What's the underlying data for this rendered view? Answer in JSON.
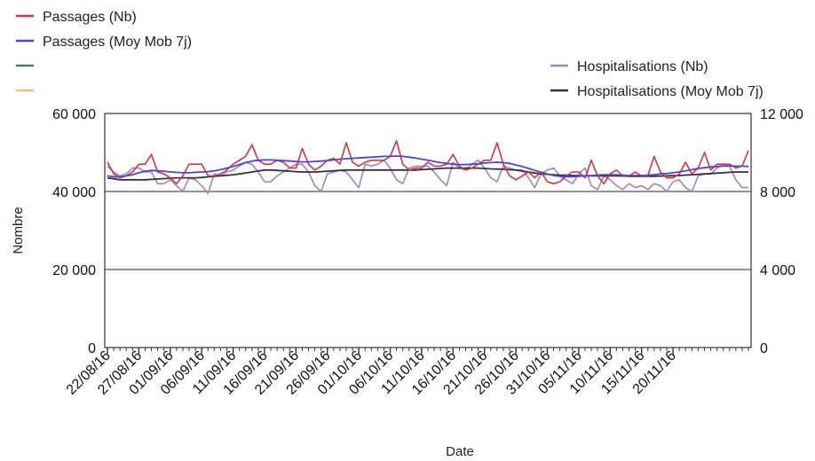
{
  "chart_data": {
    "type": "line",
    "title": "",
    "xlabel": "Date",
    "ylabel": "Nombre",
    "y2label": "",
    "ylim": [
      0,
      60000
    ],
    "y2lim": [
      0,
      12000
    ],
    "grid": "horizontal",
    "legend_left_position": "top-left",
    "legend_right_position": "top-right",
    "start_date": "22/08/16",
    "x_tick_labels": [
      "22/08/16",
      "27/08/16",
      "01/09/16",
      "06/09/16",
      "11/09/16",
      "16/09/16",
      "21/09/16",
      "26/09/16",
      "01/10/16",
      "06/10/16",
      "11/10/16",
      "16/10/16",
      "21/10/16",
      "26/10/16",
      "31/10/16",
      "05/11/16",
      "10/11/16",
      "15/11/16",
      "20/11/16"
    ],
    "y_ticks": [
      "0",
      "20 000",
      "40 000",
      "60 000"
    ],
    "y2_ticks": [
      "0",
      "4 000",
      "8 000",
      "12 000"
    ],
    "series": [
      {
        "name": "Passages (Nb)",
        "axis": "left",
        "color": "#d9343f",
        "values": [
          47500,
          44500,
          43500,
          44000,
          45000,
          47000,
          47000,
          49500,
          45000,
          44500,
          43500,
          42000,
          44000,
          47000,
          47000,
          47000,
          44000,
          44000,
          44500,
          45500,
          47000,
          48000,
          49000,
          52000,
          48000,
          47000,
          47000,
          48000,
          47500,
          46000,
          46000,
          51000,
          47000,
          45500,
          46500,
          48000,
          48500,
          47000,
          52500,
          47500,
          46500,
          47500,
          48000,
          48000,
          48000,
          49000,
          53000,
          47000,
          45500,
          46000,
          46000,
          47500,
          46500,
          46500,
          47000,
          49500,
          46500,
          45500,
          46000,
          47000,
          48000,
          48000,
          52500,
          47000,
          44000,
          43000,
          44000,
          45000,
          43500,
          45000,
          42500,
          42000,
          42500,
          44000,
          45000,
          45000,
          43500,
          48000,
          44000,
          42000,
          44500,
          45500,
          44000,
          44000,
          45000,
          44000,
          44000,
          49000,
          45000,
          43500,
          43500,
          44500,
          47500,
          44500,
          46000,
          50000,
          45500,
          47000,
          47000,
          47000,
          46000,
          46500,
          50500
        ]
      },
      {
        "name": "Passages (Moy Mob 7j)",
        "axis": "left",
        "color": "#4b46d6",
        "values": [
          44000,
          43800,
          43700,
          44000,
          44300,
          44800,
          45200,
          45400,
          45300,
          45200,
          45000,
          44900,
          44800,
          44800,
          44900,
          45000,
          45100,
          45300,
          45600,
          46000,
          46400,
          46900,
          47400,
          47800,
          48000,
          48100,
          48100,
          48000,
          47900,
          47800,
          47700,
          47600,
          47600,
          47700,
          47800,
          47900,
          48100,
          48300,
          48400,
          48500,
          48600,
          48700,
          48800,
          48900,
          49000,
          49000,
          49100,
          49000,
          48800,
          48600,
          48300,
          48000,
          47700,
          47400,
          47200,
          47000,
          46900,
          46900,
          47000,
          47100,
          47300,
          47400,
          47500,
          47400,
          47200,
          46800,
          46400,
          45900,
          45400,
          44900,
          44500,
          44100,
          43900,
          43800,
          43800,
          43900,
          44000,
          44100,
          44200,
          44300,
          44300,
          44300,
          44200,
          44100,
          44100,
          44100,
          44200,
          44300,
          44500,
          44600,
          44800,
          45000,
          45300,
          45600,
          45900,
          46100,
          46300,
          46400,
          46500,
          46500,
          46500,
          46500,
          46400
        ]
      },
      {
        "name": "",
        "axis": "left",
        "color": "#4a7a6a",
        "values": []
      },
      {
        "name": "",
        "axis": "left",
        "color": "#f0c080",
        "values": []
      },
      {
        "name": "Hospitalisations (Nb)",
        "axis": "right",
        "color": "#9b86c8",
        "values": [
          9300,
          9000,
          8800,
          8900,
          9200,
          9200,
          9000,
          9000,
          8400,
          8400,
          8600,
          8300,
          8000,
          8700,
          8600,
          8300,
          7900,
          8900,
          8800,
          9000,
          9100,
          9300,
          9500,
          9400,
          9000,
          8500,
          8500,
          8800,
          9000,
          9200,
          9400,
          9400,
          9000,
          8300,
          8000,
          8900,
          9000,
          9100,
          9000,
          8600,
          8200,
          9400,
          9300,
          9400,
          9600,
          9200,
          8600,
          8400,
          9200,
          9300,
          9300,
          9300,
          9000,
          8600,
          8300,
          9500,
          9200,
          9100,
          9400,
          9600,
          9200,
          8700,
          8500,
          9300,
          9200,
          9100,
          9100,
          8700,
          8200,
          8900,
          9100,
          9200,
          8800,
          8600,
          8400,
          8900,
          9200,
          8300,
          8100,
          8800,
          8600,
          8300,
          8100,
          8400,
          8200,
          8300,
          8100,
          8400,
          8300,
          8000,
          8500,
          8600,
          8200,
          8000,
          8800,
          8900,
          8900,
          9200,
          9400,
          9300,
          8600,
          8200,
          8200
        ]
      },
      {
        "name": "Hospitalisations (Moy Mob 7j)",
        "axis": "right",
        "color": "#333333",
        "values": [
          8700,
          8650,
          8600,
          8600,
          8600,
          8600,
          8600,
          8620,
          8640,
          8660,
          8680,
          8700,
          8700,
          8700,
          8700,
          8720,
          8750,
          8780,
          8800,
          8830,
          8860,
          8900,
          8950,
          9000,
          9050,
          9100,
          9100,
          9080,
          9060,
          9040,
          9020,
          9000,
          9000,
          9000,
          9020,
          9040,
          9060,
          9080,
          9100,
          9100,
          9100,
          9100,
          9100,
          9100,
          9100,
          9100,
          9100,
          9100,
          9100,
          9100,
          9120,
          9140,
          9160,
          9180,
          9200,
          9200,
          9200,
          9200,
          9200,
          9200,
          9180,
          9160,
          9150,
          9140,
          9120,
          9100,
          9050,
          9000,
          8950,
          8900,
          8880,
          8860,
          8840,
          8830,
          8820,
          8810,
          8800,
          8800,
          8800,
          8800,
          8800,
          8800,
          8790,
          8780,
          8780,
          8780,
          8780,
          8780,
          8790,
          8800,
          8810,
          8820,
          8840,
          8860,
          8880,
          8900,
          8920,
          8940,
          8960,
          8980,
          9000,
          9000,
          9000
        ]
      }
    ]
  }
}
